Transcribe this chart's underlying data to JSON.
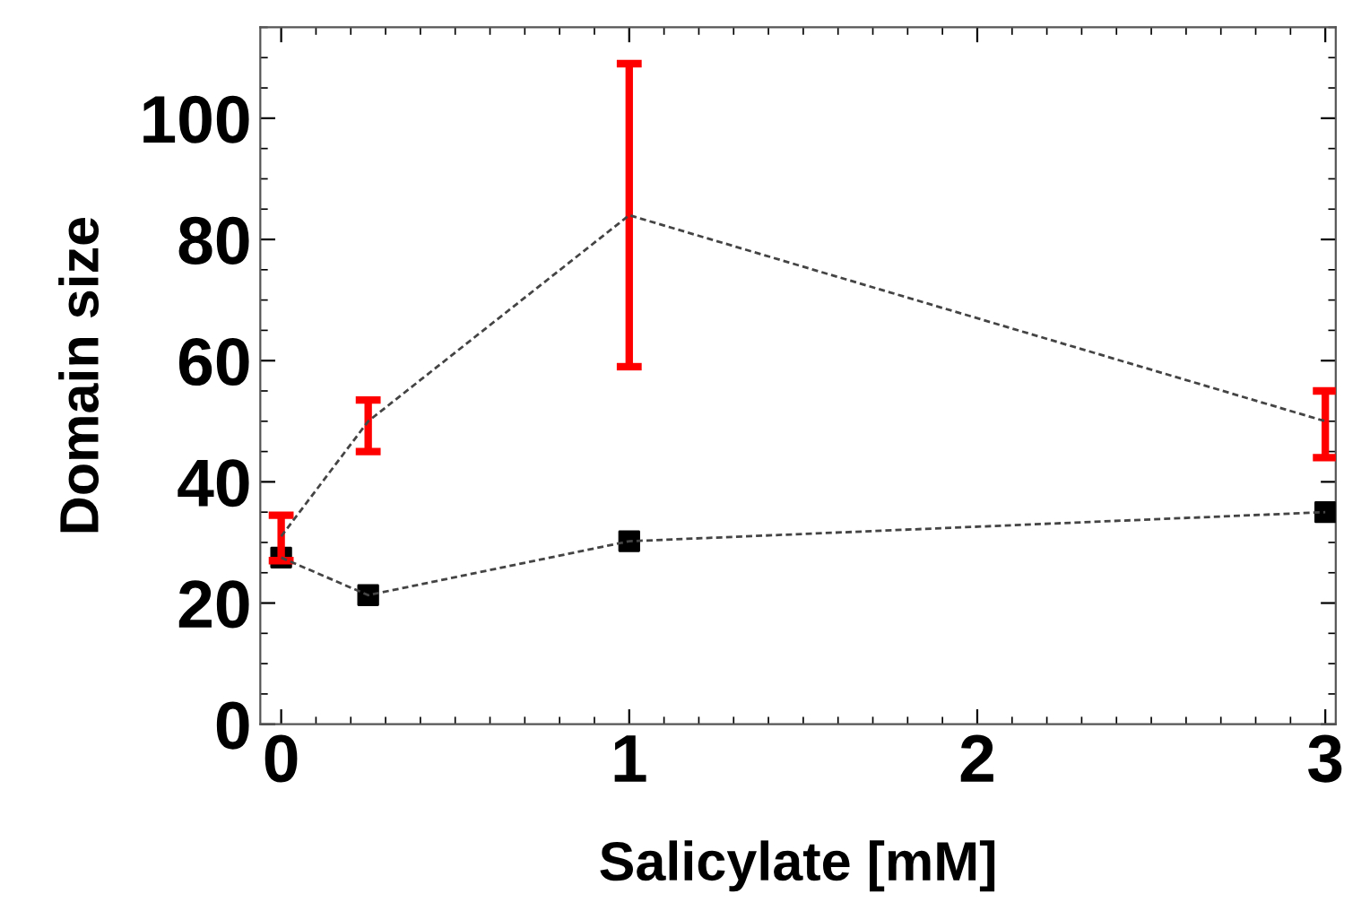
{
  "chart_data": {
    "type": "line",
    "xlabel": "Salicylate [mM]",
    "ylabel": "Domain size",
    "x": [
      0,
      0.25,
      1,
      3
    ],
    "series": [
      {
        "color": "#444444",
        "colors": [
          "#ff0000",
          "#ff0000",
          "#ff0000",
          "#ff0000"
        ],
        "marker": "none",
        "line_style": "dashed",
        "values": [
          31,
          50,
          84,
          50
        ],
        "errors": [
          [
            27,
            34.5
          ],
          [
            45,
            53.5
          ],
          [
            59,
            109
          ],
          [
            44,
            55
          ]
        ]
      },
      {
        "color": "#444444",
        "colors": [
          "#000000",
          "#000000",
          "#000000",
          "#000000"
        ],
        "marker": "square",
        "line_style": "dashed",
        "values": [
          27.5,
          21.3,
          30.2,
          35
        ]
      }
    ],
    "xlim": [
      -0.06,
      3.03
    ],
    "ylim": [
      0,
      115
    ],
    "xticks": [
      0,
      1,
      2,
      3
    ],
    "yticks": [
      0,
      20,
      40,
      60,
      80,
      100
    ],
    "grid": false,
    "legend": false
  }
}
